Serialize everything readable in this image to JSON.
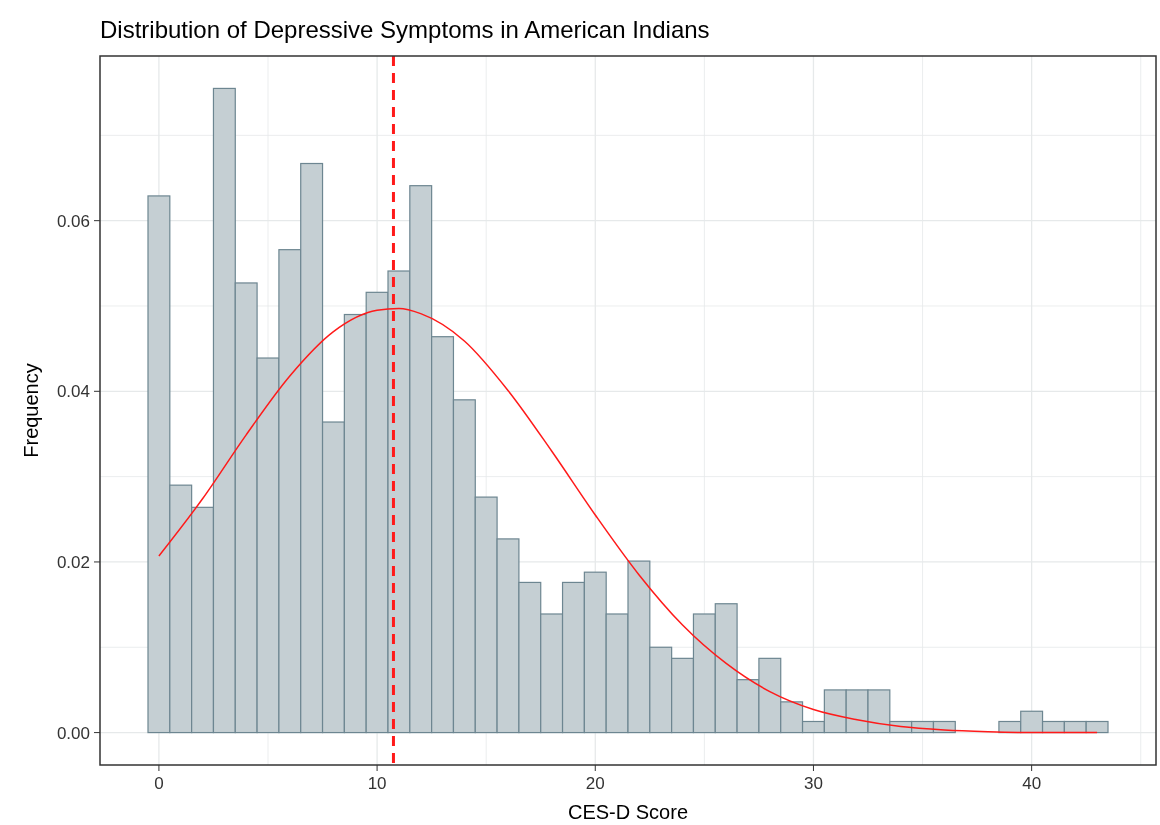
{
  "chart_data": {
    "type": "histogram",
    "title": "Distribution of Depressive Symptoms in American Indians",
    "xlabel": "CES-D Score",
    "ylabel": "Frequency",
    "bins": [
      -0.5,
      0.5,
      1.5,
      2.5,
      3.5,
      4.5,
      5.5,
      6.5,
      7.5,
      8.5,
      9.5,
      10.5,
      11.5,
      12.5,
      13.5,
      14.5,
      15.5,
      16.5,
      17.5,
      18.5,
      19.5,
      20.5,
      21.5,
      22.5,
      23.5,
      24.5,
      25.5,
      26.5,
      27.5,
      28.5,
      29.5,
      30.5,
      31.5,
      32.5,
      33.5,
      34.5,
      35.5,
      36.5,
      37.5,
      38.5,
      39.5,
      40.5,
      41.5,
      42.5,
      43.5
    ],
    "series": [
      {
        "color": "#c5cfd3",
        "values": [
          0.0629,
          0.029,
          0.0264,
          0.0755,
          0.0527,
          0.0439,
          0.0566,
          0.0667,
          0.0364,
          0.049,
          0.0516,
          0.0541,
          0.0641,
          0.0464,
          0.039,
          0.0276,
          0.0227,
          0.0176,
          0.0139,
          0.0176,
          0.0188,
          0.0139,
          0.0201,
          0.01,
          0.0087,
          0.0139,
          0.0151,
          0.0062,
          0.0087,
          0.0036,
          0.0013,
          0.005,
          0.005,
          0.005,
          0.0013,
          0.0013,
          0.0013,
          0,
          0,
          0.0013,
          0.0025,
          0.0013,
          0.0013,
          0.0013
        ]
      },
      {
        "type": "line",
        "color": "#ff1a1a",
        "x": [
          0,
          2,
          4,
          6,
          8,
          10,
          11,
          12,
          14,
          16,
          18,
          20,
          22,
          24,
          26,
          28,
          30,
          32,
          34,
          36,
          38,
          40,
          43
        ],
        "values": [
          0.0207,
          0.0274,
          0.0349,
          0.0418,
          0.047,
          0.0495,
          0.0497,
          0.0491,
          0.0459,
          0.0401,
          0.033,
          0.0255,
          0.0185,
          0.0126,
          0.0081,
          0.0048,
          0.0027,
          0.0015,
          0.0007,
          0.0003,
          0.0001,
          0,
          0
        ]
      }
    ],
    "ref_lines": [
      {
        "axis": "x",
        "value": 10.75,
        "color": "#ff1a1a",
        "line_style": "dashed"
      }
    ],
    "xlim": [
      -2.7,
      45.7
    ],
    "xticks": [
      0,
      10,
      20,
      30,
      40,
      {
        "value": 5,
        "label": null
      },
      {
        "value": 15,
        "label": null
      },
      {
        "value": 25,
        "label": null
      },
      {
        "value": 35,
        "label": null
      },
      {
        "value": 45,
        "label": null
      }
    ],
    "ylim": [
      -0.0038,
      0.0793
    ],
    "yticks": [
      {
        "value": 0,
        "label": "0.00"
      },
      {
        "value": 0.02,
        "label": "0.02"
      },
      {
        "value": 0.04,
        "label": "0.04"
      },
      {
        "value": 0.06,
        "label": "0.06"
      },
      {
        "value": 0.01,
        "label": null
      },
      {
        "value": 0.03,
        "label": null
      },
      {
        "value": 0.05,
        "label": null
      },
      {
        "value": 0.07,
        "label": null
      }
    ],
    "grid": true
  }
}
